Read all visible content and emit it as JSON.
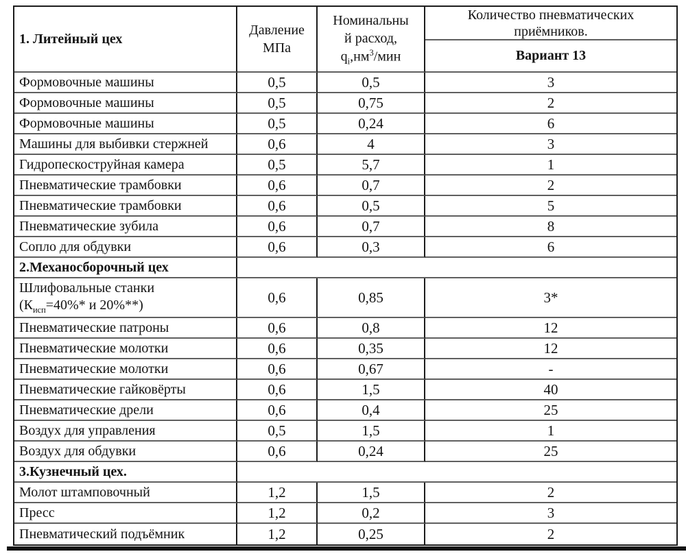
{
  "table": {
    "header": {
      "col1": "1. Литейный цех",
      "col2_lines": [
        "Давление",
        "МПа"
      ],
      "col3": {
        "line1": "Номинальны",
        "line2": "й расход,",
        "parts": {
          "base": "q",
          "sub": "i",
          "mid": ",нм",
          "sup": "3",
          "end": "/мин"
        }
      },
      "col4": {
        "top_lines": [
          "Количество пневматических",
          "приёмников."
        ],
        "variant": "Вариант 13"
      }
    },
    "rows": [
      {
        "type": "data",
        "name": "Формовочные машины",
        "pressure": "0,5",
        "flow": "0,5",
        "count": "3"
      },
      {
        "type": "data",
        "name": "Формовочные машины",
        "pressure": "0,5",
        "flow": "0,75",
        "count": "2"
      },
      {
        "type": "data",
        "name": "Формовочные машины",
        "pressure": "0,5",
        "flow": "0,24",
        "count": "6"
      },
      {
        "type": "data",
        "name": "Машины для выбивки стержней",
        "pressure": "0,6",
        "flow": "4",
        "count": "3"
      },
      {
        "type": "data",
        "name": "Гидропескоструйная камера",
        "pressure": "0,5",
        "flow": "5,7",
        "count": "1"
      },
      {
        "type": "data",
        "name": "Пневматические трамбовки",
        "pressure": "0,6",
        "flow": "0,7",
        "count": "2"
      },
      {
        "type": "data",
        "name": "Пневматические трамбовки",
        "pressure": "0,6",
        "flow": "0,5",
        "count": "5"
      },
      {
        "type": "data",
        "name": "Пневматические зубила",
        "pressure": "0,6",
        "flow": "0,7",
        "count": "8"
      },
      {
        "type": "data",
        "name": "Сопло для обдувки",
        "pressure": "0,6",
        "flow": "0,3",
        "count": "6"
      },
      {
        "type": "section",
        "name": "2.Механосборочный цех"
      },
      {
        "type": "data",
        "tall": true,
        "name_lines": [
          [
            "Шлифовальные станки"
          ],
          [
            "(К",
            {
              "sub": "исп"
            },
            "=40%* и 20%**)"
          ]
        ],
        "pressure": "0,6",
        "flow": "0,85",
        "count": "3*"
      },
      {
        "type": "data",
        "name": "Пневматические патроны",
        "pressure": "0,6",
        "flow": "0,8",
        "count": "12"
      },
      {
        "type": "data",
        "name": "Пневматические молотки",
        "pressure": "0,6",
        "flow": "0,35",
        "count": "12"
      },
      {
        "type": "data",
        "name": "Пневматические молотки",
        "pressure": "0,6",
        "flow": "0,67",
        "count": "-"
      },
      {
        "type": "data",
        "name": "Пневматические гайковёрты",
        "pressure": "0,6",
        "flow": "1,5",
        "count": "40"
      },
      {
        "type": "data",
        "name": "Пневматические дрели",
        "pressure": "0,6",
        "flow": "0,4",
        "count": "25"
      },
      {
        "type": "data",
        "name": "Воздух для управления",
        "pressure": "0,5",
        "flow": "1,5",
        "count": "1"
      },
      {
        "type": "data",
        "name": "Воздух для обдувки",
        "pressure": "0,6",
        "flow": "0,24",
        "count": "25"
      },
      {
        "type": "section",
        "name": "3.Кузнечный цех."
      },
      {
        "type": "data",
        "name": "Молот штамповочный",
        "pressure": "1,2",
        "flow": "1,5",
        "count": "2"
      },
      {
        "type": "data",
        "name": "Пресс",
        "pressure": "1,2",
        "flow": "0,2",
        "count": "3"
      },
      {
        "type": "data",
        "name": "Пневматический подъёмник",
        "pressure": "1,2",
        "flow": "0,25",
        "count": "2"
      }
    ]
  }
}
